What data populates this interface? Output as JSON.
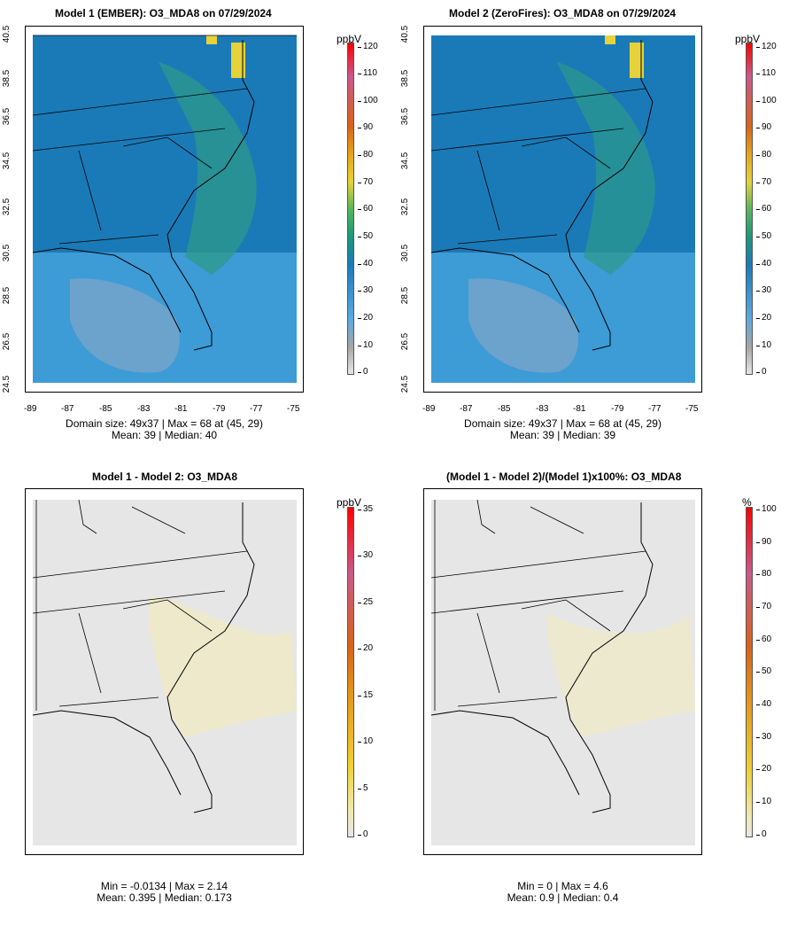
{
  "panels": {
    "p1": {
      "title": "Model 1 (EMBER): O3_MDA8 on 07/29/2024",
      "stats_line1": "Domain size: 49x37 | Max = 68 at (45, 29)",
      "stats_line2": "Mean: 39 |  Median: 40",
      "unit": "ppbV",
      "cbar_ticks": [
        "120",
        "110",
        "100",
        "90",
        "80",
        "70",
        "60",
        "50",
        "40",
        "30",
        "20",
        "10",
        "0"
      ]
    },
    "p2": {
      "title": "Model 2 (ZeroFires): O3_MDA8 on 07/29/2024",
      "stats_line1": "Domain size: 49x37 | Max = 68 at (45, 29)",
      "stats_line2": "Mean: 39 |  Median: 39",
      "unit": "ppbV",
      "cbar_ticks": [
        "120",
        "110",
        "100",
        "90",
        "80",
        "70",
        "60",
        "50",
        "40",
        "30",
        "20",
        "10",
        "0"
      ]
    },
    "p3": {
      "title": "Model 1 - Model 2: O3_MDA8",
      "stats_line1": "Min = -0.0134 | Max = 2.14",
      "stats_line2": "Mean: 0.395 |  Median: 0.173",
      "unit": "ppbV",
      "cbar_ticks": [
        "35",
        "30",
        "25",
        "20",
        "15",
        "10",
        "5",
        "0"
      ]
    },
    "p4": {
      "title": "(Model 1 - Model 2)/(Model 1)x100%: O3_MDA8",
      "stats_line1": "Min = 0 | Max = 4.6",
      "stats_line2": "Mean: 0.9 |  Median: 0.4",
      "unit": "%",
      "cbar_ticks": [
        "100",
        "90",
        "80",
        "70",
        "60",
        "50",
        "40",
        "30",
        "20",
        "10",
        "0"
      ]
    }
  },
  "axes": {
    "lon_ticks": [
      "-89",
      "-87",
      "-85",
      "-83",
      "-81",
      "-79",
      "-77",
      "-75"
    ],
    "lat_ticks": [
      "40.5",
      "38.5",
      "36.5",
      "34.5",
      "32.5",
      "30.5",
      "28.5",
      "26.5",
      "24.5"
    ]
  },
  "colors": {
    "concentration_scale": [
      "#e6e6e6",
      "#a6a6a6",
      "#5aa9e0",
      "#1a7ab8",
      "#1d9a7a",
      "#5ab65a",
      "#e6d23a",
      "#e5a21a",
      "#d9621a",
      "#c85a8a",
      "#ff0000"
    ],
    "difference_scale": [
      "#e6e6e6",
      "#f0e9b0",
      "#f0d030",
      "#e59a1a",
      "#d8621a",
      "#c85a8a",
      "#ff0000"
    ]
  }
}
